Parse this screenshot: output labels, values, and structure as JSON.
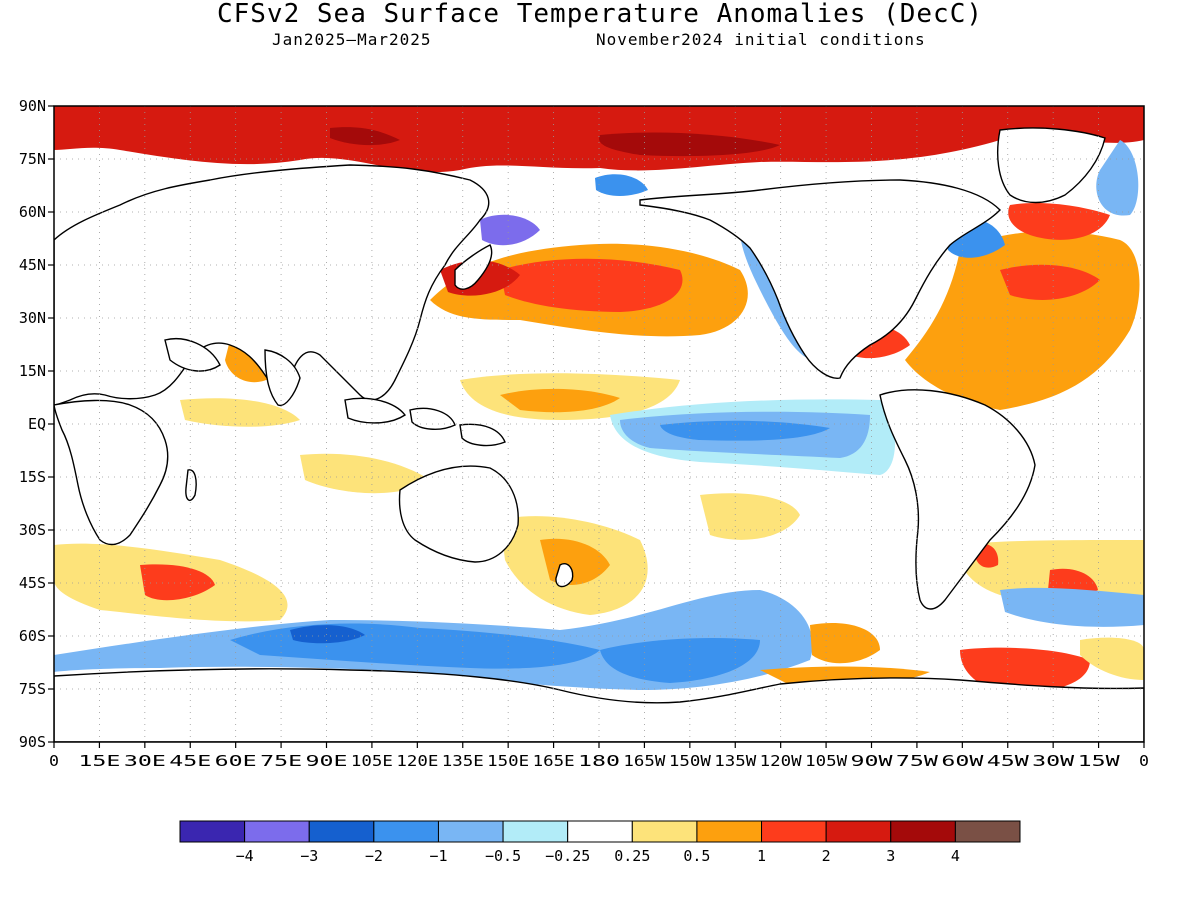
{
  "header": {
    "title": "CFSv2 Sea Surface Temperature Anomalies (DecC)",
    "period": "Jan2025–Mar2025",
    "init": "November2024 initial conditions"
  },
  "axes": {
    "lat_labels": [
      "90N",
      "75N",
      "60N",
      "45N",
      "30N",
      "15N",
      "EQ",
      "15S",
      "30S",
      "45S",
      "60S",
      "75S",
      "90S"
    ],
    "lon_labels": [
      "0",
      "15E",
      "30E",
      "45E",
      "60E",
      "75E",
      "90E",
      "105E",
      "120E",
      "135E",
      "150E",
      "165E",
      "180",
      "165W",
      "150W",
      "135W",
      "120W",
      "105W",
      "90W",
      "75W",
      "60W",
      "45W",
      "30W",
      "15W",
      "0"
    ]
  },
  "colorbar": {
    "colors": [
      "#3a26b0",
      "#7c6cec",
      "#1560cf",
      "#3b92ee",
      "#79b6f4",
      "#b2ecf8",
      "#ffffff",
      "#fde37a",
      "#fda00e",
      "#fd3c1c",
      "#d61a10",
      "#a40a0a",
      "#7a5045"
    ],
    "labels": [
      "−4",
      "−3",
      "−2",
      "−1",
      "−0.5",
      "−0.25",
      "0.25",
      "0.5",
      "1",
      "2",
      "3",
      "4"
    ]
  },
  "palette": {
    "warm": "#fd3c1c",
    "hot": "#d61a10",
    "extreme": "#a40a0a",
    "mild_warm": "#fde37a",
    "warm2": "#fda00e",
    "cool": "#b2ecf8",
    "cool2": "#79b6f4",
    "cold": "#3b92ee",
    "colder": "#1560cf",
    "coldest": "#7c6cec"
  }
}
